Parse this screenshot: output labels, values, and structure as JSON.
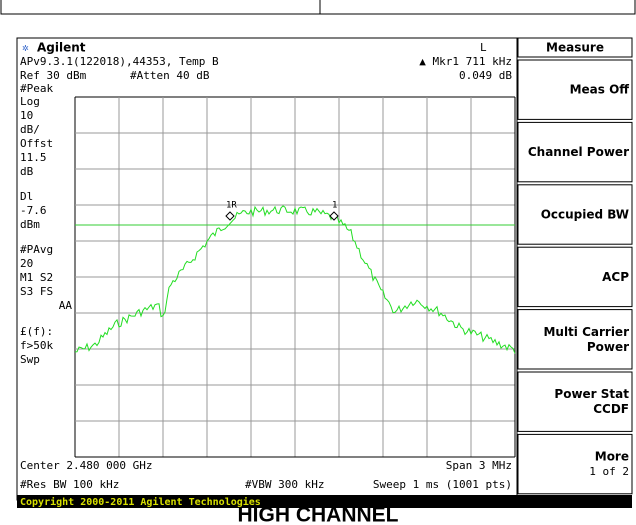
{
  "header": {
    "brand": "Agilent",
    "mode": "L",
    "info": "APv9.3.1(122018),44353, Temp B",
    "ref": "Ref 30 dBm",
    "atten": "#Atten 40 dB",
    "marker": "▲ Mkr1  711 kHz",
    "marker_value": "0.049 dB"
  },
  "left_panel": [
    "#Peak",
    "Log",
    "10",
    "dB/",
    "Offst",
    "11.5",
    "dB",
    "Dl",
    "-7.6",
    "dBm",
    "#PAvg",
    "20",
    "M1  S2",
    "S3  FS",
    "AA",
    "£(f):",
    "f>50k",
    "Swp"
  ],
  "markers": [
    "1R",
    "1"
  ],
  "footer": {
    "center": "Center 2.480 000 GHz",
    "span": "Span 3 MHz",
    "rbw": "#Res BW 100 kHz",
    "vbw": "#VBW 300 kHz",
    "sweep": "Sweep 1 ms (1001 pts)",
    "copyright": "Copyright 2000-2011 Agilent Technologies"
  },
  "softkeys": {
    "title": "Measure",
    "keys": [
      [
        "Meas Off"
      ],
      [
        "Channel Power"
      ],
      [
        "Occupied BW"
      ],
      [
        "ACP"
      ],
      [
        "Multi Carrier",
        "Power"
      ],
      [
        "Power Stat",
        "CCDF"
      ],
      [
        "More",
        "1 of 2"
      ]
    ]
  },
  "caption": "HIGH CHANNEL"
}
